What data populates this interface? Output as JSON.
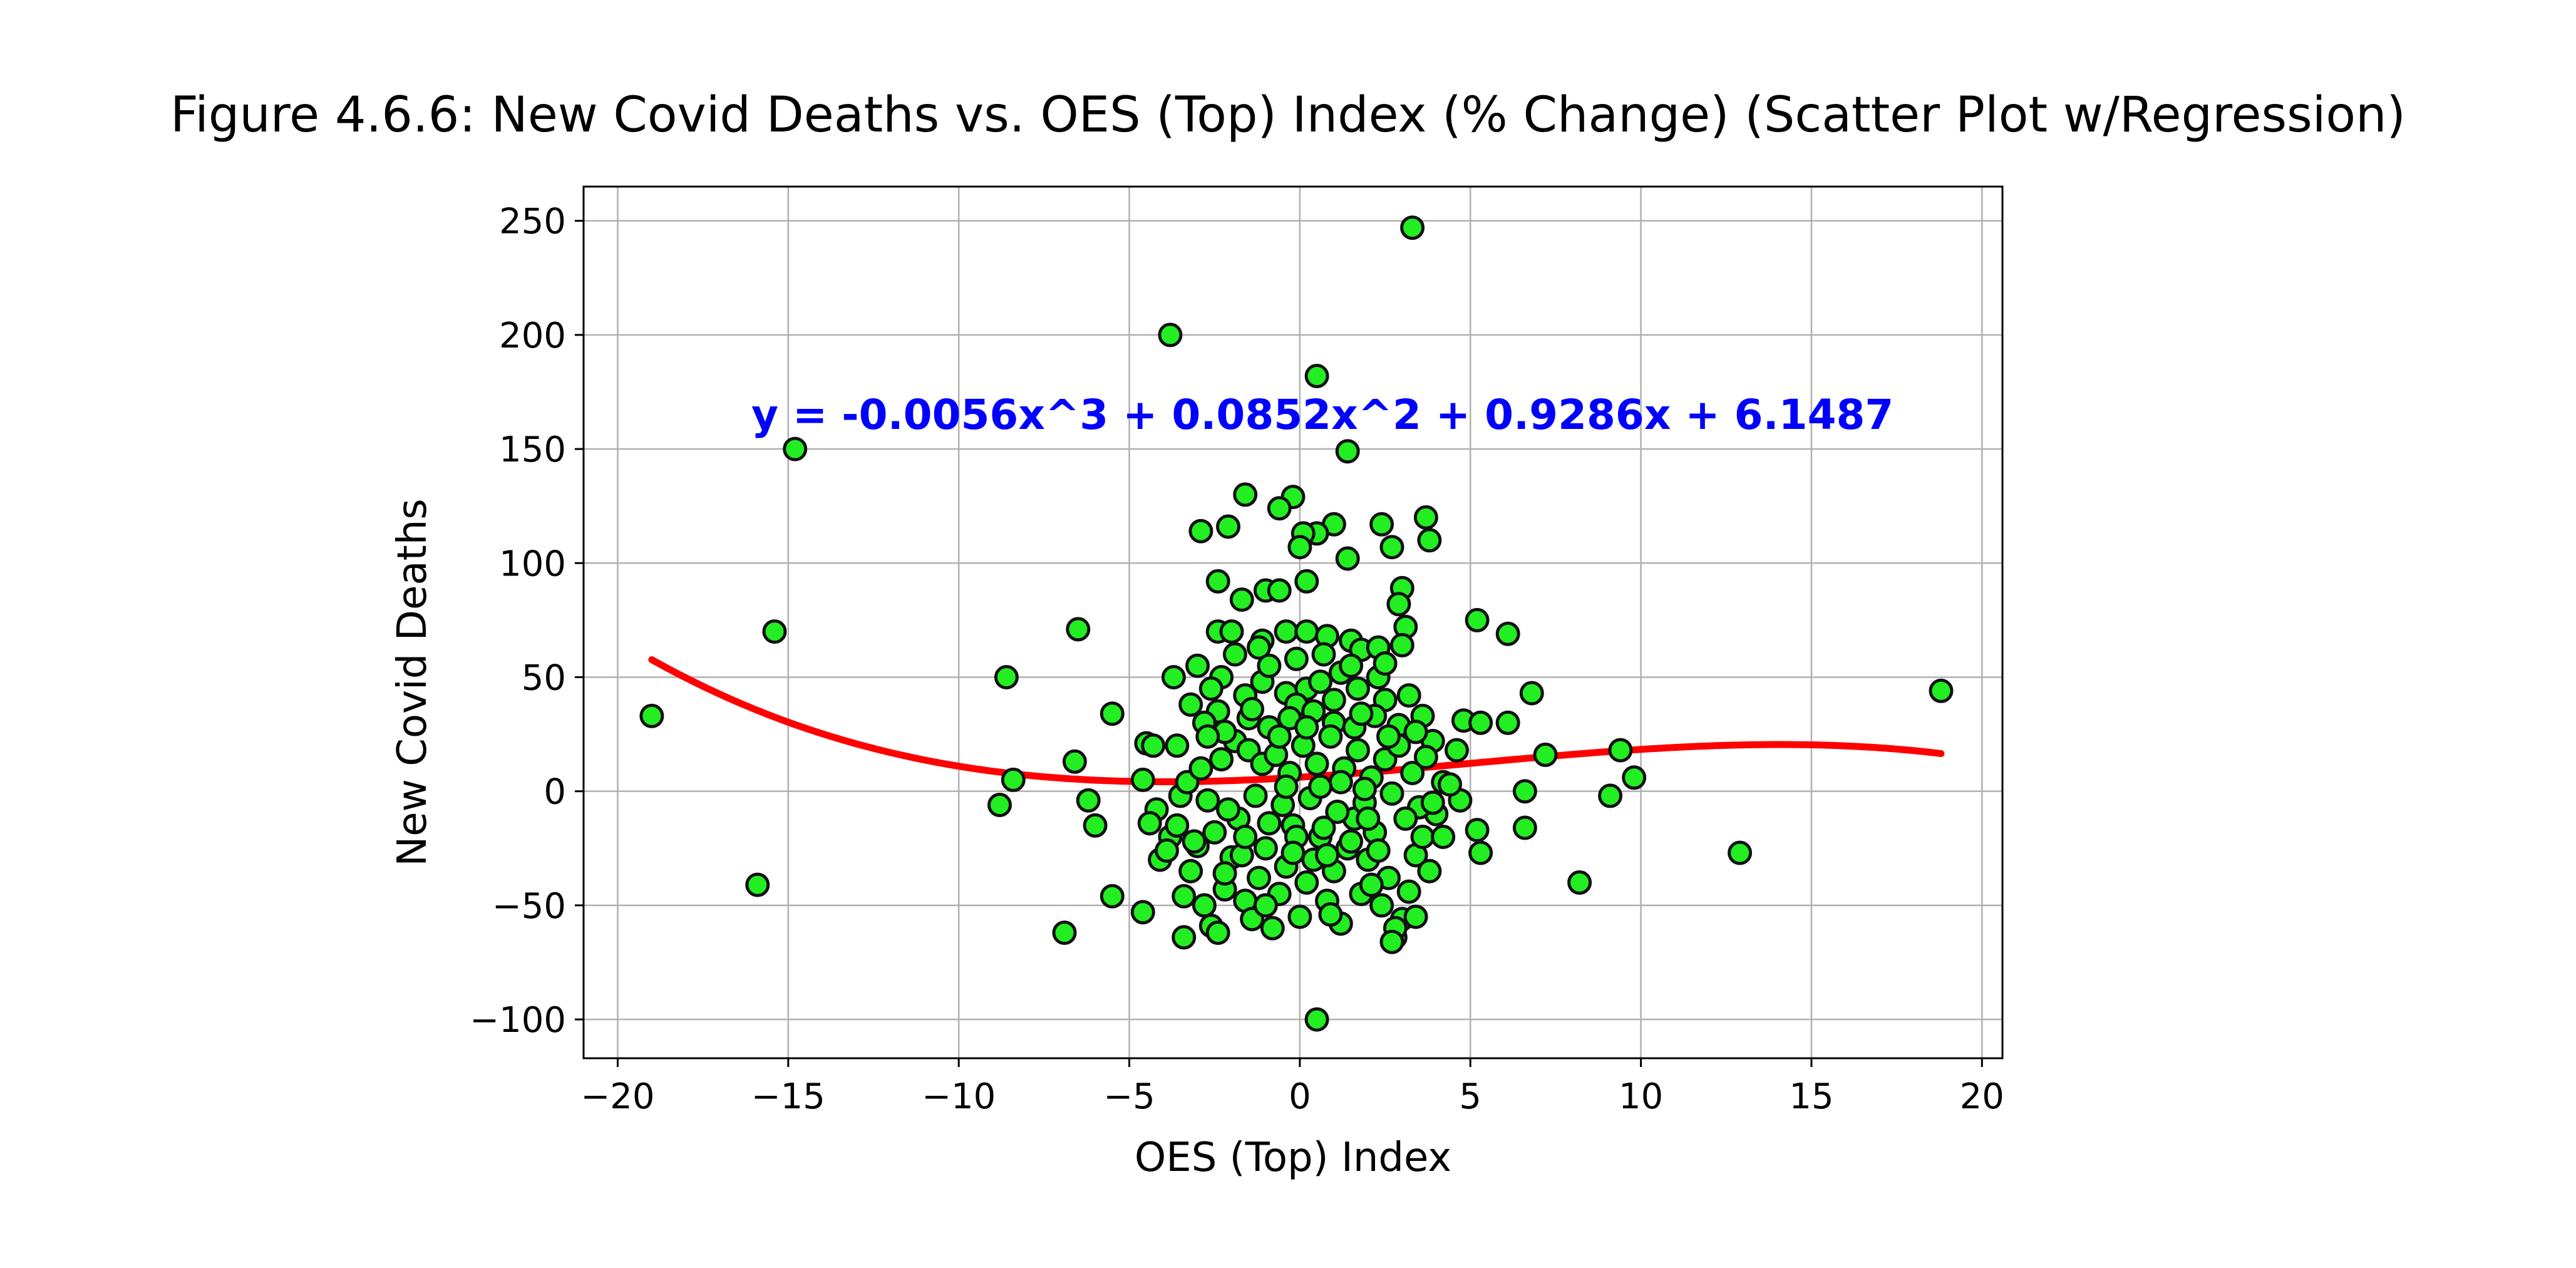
{
  "chart_data": {
    "type": "scatter",
    "title": "Figure 4.6.6: New Covid Deaths vs. OES (Top) Index (% Change) (Scatter Plot w/Regression)",
    "xlabel": "OES (Top) Index",
    "ylabel": "New Covid Deaths",
    "xlim": [
      -21,
      20.6
    ],
    "ylim": [
      -117,
      265
    ],
    "x_ticks": [
      -20,
      -15,
      -10,
      -5,
      0,
      5,
      10,
      15,
      20
    ],
    "x_tick_labels": [
      "−20",
      "−15",
      "−10",
      "−5",
      "0",
      "5",
      "10",
      "15",
      "20"
    ],
    "y_ticks": [
      -100,
      -50,
      0,
      50,
      100,
      150,
      200,
      250
    ],
    "y_tick_labels": [
      "−100",
      "−50",
      "0",
      "50",
      "100",
      "150",
      "200",
      "250"
    ],
    "grid": true,
    "annotation": "y = -0.0056x^3 + 0.0852x^2 + 0.9286x + 6.1487",
    "annotation_color": "#0000ff",
    "marker_color": "#22ee22",
    "marker_edge_color": "#111111",
    "regression_color": "#ff0000",
    "regression": {
      "name": "",
      "degree": 3,
      "coefficients": [
        -0.0056,
        0.0852,
        0.9286,
        6.1487
      ],
      "x_range": [
        -19,
        18.8
      ]
    },
    "series": [
      {
        "name": "",
        "points": [
          [
            3.3,
            247
          ],
          [
            -3.8,
            200
          ],
          [
            0.5,
            182
          ],
          [
            -14.8,
            150
          ],
          [
            1.4,
            149
          ],
          [
            -15.4,
            70
          ],
          [
            -19.0,
            33
          ],
          [
            -15.9,
            -41
          ],
          [
            -8.6,
            50
          ],
          [
            -8.4,
            5
          ],
          [
            -8.8,
            -6
          ],
          [
            -6.5,
            71
          ],
          [
            -6.6,
            13
          ],
          [
            -6.9,
            -62
          ],
          [
            -5.5,
            34
          ],
          [
            -5.5,
            -46
          ],
          [
            -6.0,
            -15
          ],
          [
            -6.2,
            -4
          ],
          [
            -4.6,
            -53
          ],
          [
            -4.5,
            21
          ],
          [
            -3.7,
            50
          ],
          [
            -3.6,
            20
          ],
          [
            -3.4,
            -64
          ],
          [
            -2.9,
            114
          ],
          [
            -1.6,
            130
          ],
          [
            -0.2,
            129
          ],
          [
            -0.6,
            124
          ],
          [
            -2.1,
            116
          ],
          [
            1.0,
            117
          ],
          [
            0.5,
            113
          ],
          [
            0.1,
            113
          ],
          [
            0.0,
            107
          ],
          [
            3.7,
            120
          ],
          [
            3.8,
            110
          ],
          [
            2.4,
            117
          ],
          [
            2.7,
            107
          ],
          [
            1.4,
            102
          ],
          [
            0.2,
            92
          ],
          [
            3.0,
            89
          ],
          [
            2.9,
            82
          ],
          [
            3.1,
            72
          ],
          [
            3.0,
            64
          ],
          [
            -2.4,
            92
          ],
          [
            -1.0,
            88
          ],
          [
            -0.6,
            88
          ],
          [
            -1.7,
            84
          ],
          [
            -2.4,
            70
          ],
          [
            -2.0,
            70
          ],
          [
            -1.1,
            66
          ],
          [
            -1.2,
            63
          ],
          [
            -0.4,
            70
          ],
          [
            0.2,
            70
          ],
          [
            0.8,
            68
          ],
          [
            1.5,
            66
          ],
          [
            1.8,
            62
          ],
          [
            2.3,
            63
          ],
          [
            -3.0,
            55
          ],
          [
            -2.3,
            50
          ],
          [
            -2.6,
            45
          ],
          [
            -1.6,
            42
          ],
          [
            -1.1,
            48
          ],
          [
            -0.4,
            43
          ],
          [
            0.2,
            45
          ],
          [
            0.6,
            48
          ],
          [
            1.2,
            52
          ],
          [
            1.7,
            45
          ],
          [
            2.3,
            50
          ],
          [
            2.5,
            40
          ],
          [
            -0.1,
            38
          ],
          [
            -3.2,
            38
          ],
          [
            -2.4,
            35
          ],
          [
            -2.8,
            30
          ],
          [
            -1.5,
            32
          ],
          [
            -0.9,
            28
          ],
          [
            -0.3,
            32
          ],
          [
            0.4,
            35
          ],
          [
            1.0,
            30
          ],
          [
            1.6,
            28
          ],
          [
            2.2,
            33
          ],
          [
            2.9,
            29
          ],
          [
            3.6,
            33
          ],
          [
            3.9,
            22
          ],
          [
            4.2,
            4
          ],
          [
            4.8,
            31
          ],
          [
            5.3,
            30
          ],
          [
            5.2,
            75
          ],
          [
            6.1,
            69
          ],
          [
            6.8,
            43
          ],
          [
            6.1,
            30
          ],
          [
            4.6,
            18
          ],
          [
            4.7,
            -4
          ],
          [
            5.2,
            -17
          ],
          [
            5.3,
            -27
          ],
          [
            6.6,
            0
          ],
          [
            6.6,
            -16
          ],
          [
            7.2,
            16
          ],
          [
            8.2,
            -40
          ],
          [
            9.1,
            -2
          ],
          [
            9.4,
            18
          ],
          [
            9.8,
            6
          ],
          [
            12.9,
            -27
          ],
          [
            18.8,
            44
          ],
          [
            -4.3,
            20
          ],
          [
            -4.6,
            5
          ],
          [
            -4.2,
            -8
          ],
          [
            -4.4,
            -14
          ],
          [
            -4.1,
            -30
          ],
          [
            -3.8,
            -20
          ],
          [
            -3.5,
            -2
          ],
          [
            -3.2,
            -35
          ],
          [
            -3.0,
            -24
          ],
          [
            -2.8,
            -50
          ],
          [
            -2.6,
            -59
          ],
          [
            -2.4,
            -62
          ],
          [
            -2.2,
            -43
          ],
          [
            -2.0,
            -29
          ],
          [
            -1.8,
            -12
          ],
          [
            -1.6,
            -48
          ],
          [
            -1.4,
            -56
          ],
          [
            -1.2,
            -38
          ],
          [
            -1.0,
            -25
          ],
          [
            -0.8,
            -60
          ],
          [
            -0.6,
            -45
          ],
          [
            -0.4,
            -33
          ],
          [
            -0.2,
            -15
          ],
          [
            0.0,
            -55
          ],
          [
            0.2,
            -40
          ],
          [
            0.4,
            -30
          ],
          [
            0.6,
            -20
          ],
          [
            0.8,
            -48
          ],
          [
            1.0,
            -35
          ],
          [
            1.2,
            -58
          ],
          [
            1.4,
            -25
          ],
          [
            1.6,
            -12
          ],
          [
            1.8,
            -45
          ],
          [
            2.0,
            -30
          ],
          [
            2.2,
            -18
          ],
          [
            2.4,
            -50
          ],
          [
            2.6,
            -38
          ],
          [
            2.8,
            -64
          ],
          [
            3.0,
            -56
          ],
          [
            3.2,
            -44
          ],
          [
            3.4,
            -28
          ],
          [
            3.6,
            -20
          ],
          [
            3.8,
            -35
          ],
          [
            4.0,
            -10
          ],
          [
            4.2,
            -20
          ],
          [
            0.5,
            -100
          ],
          [
            2.8,
            -60
          ],
          [
            2.7,
            -66
          ],
          [
            3.4,
            -55
          ],
          [
            -3.3,
            4
          ],
          [
            -2.9,
            10
          ],
          [
            -2.3,
            14
          ],
          [
            -1.9,
            22
          ],
          [
            -1.5,
            18
          ],
          [
            -1.1,
            12
          ],
          [
            -0.7,
            16
          ],
          [
            -0.3,
            8
          ],
          [
            0.1,
            20
          ],
          [
            0.5,
            12
          ],
          [
            0.9,
            24
          ],
          [
            1.3,
            10
          ],
          [
            1.7,
            18
          ],
          [
            2.1,
            6
          ],
          [
            2.5,
            14
          ],
          [
            2.9,
            20
          ],
          [
            3.3,
            8
          ],
          [
            3.7,
            15
          ],
          [
            -2.7,
            -4
          ],
          [
            -2.1,
            -8
          ],
          [
            -1.3,
            -2
          ],
          [
            -0.5,
            -6
          ],
          [
            0.3,
            -3
          ],
          [
            1.1,
            -9
          ],
          [
            1.9,
            -5
          ],
          [
            2.7,
            -1
          ],
          [
            3.5,
            -7
          ],
          [
            -3.6,
            -15
          ],
          [
            -3.9,
            -26
          ],
          [
            -3.1,
            -22
          ],
          [
            -2.5,
            -18
          ],
          [
            -1.7,
            -28
          ],
          [
            -0.9,
            -14
          ],
          [
            -0.1,
            -20
          ],
          [
            0.7,
            -16
          ],
          [
            1.5,
            -22
          ],
          [
            2.3,
            -26
          ],
          [
            3.1,
            -12
          ],
          [
            3.9,
            -5
          ],
          [
            -2.2,
            26
          ],
          [
            -1.4,
            36
          ],
          [
            -0.6,
            24
          ],
          [
            0.2,
            28
          ],
          [
            1.0,
            40
          ],
          [
            1.8,
            34
          ],
          [
            2.6,
            24
          ],
          [
            3.4,
            26
          ],
          [
            -0.9,
            55
          ],
          [
            -0.1,
            58
          ],
          [
            0.7,
            60
          ],
          [
            1.5,
            55
          ],
          [
            2.5,
            56
          ],
          [
            -1.9,
            60
          ],
          [
            -2.7,
            24
          ],
          [
            3.2,
            42
          ],
          [
            4.4,
            3
          ],
          [
            0.9,
            -54
          ],
          [
            -1.0,
            -50
          ],
          [
            2.1,
            -41
          ],
          [
            -2.2,
            -36
          ],
          [
            1.2,
            4
          ],
          [
            -0.4,
            2
          ],
          [
            0.6,
            2
          ],
          [
            1.9,
            1
          ],
          [
            -1.6,
            -20
          ],
          [
            -0.2,
            -27
          ],
          [
            0.8,
            -28
          ],
          [
            2.0,
            -12
          ],
          [
            -3.4,
            -46
          ]
        ]
      }
    ]
  }
}
